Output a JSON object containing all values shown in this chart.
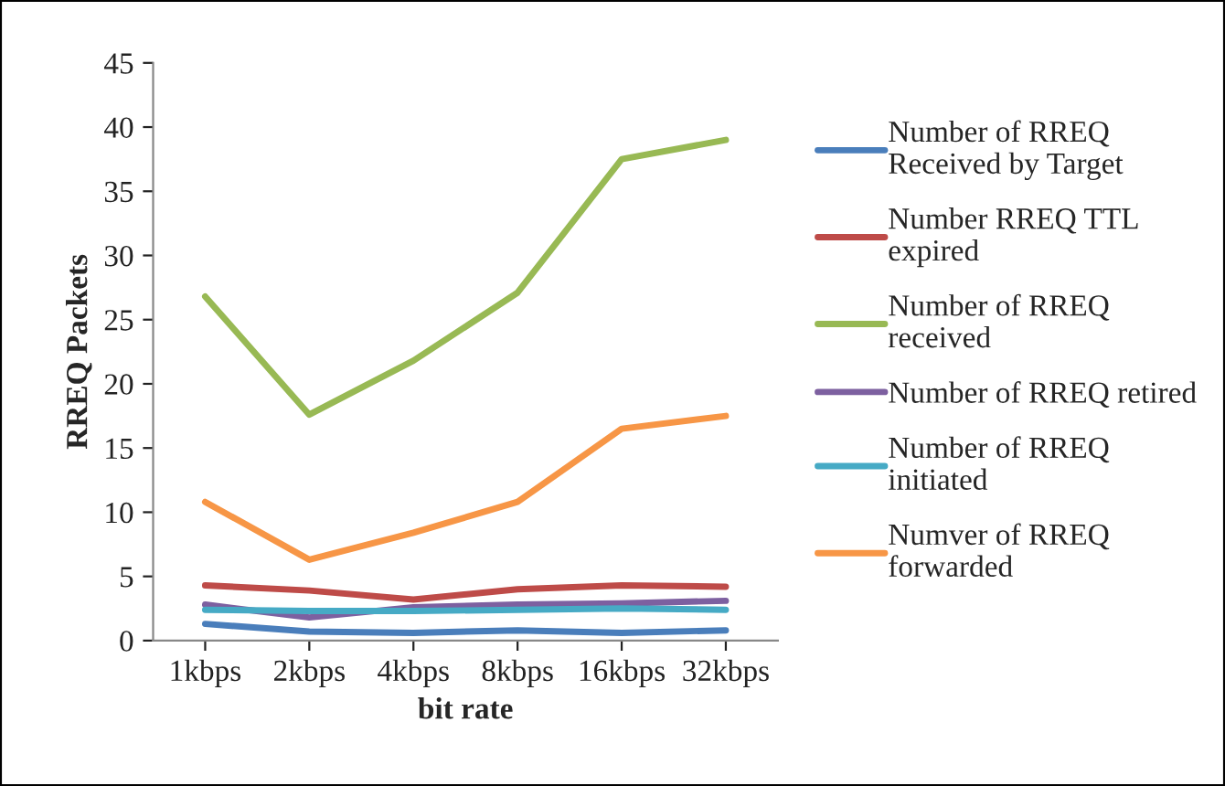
{
  "chart_data": {
    "type": "line",
    "xlabel": "bit rate",
    "ylabel": "RREQ Packets",
    "categories": [
      "1kbps",
      "2kbps",
      "4kbps",
      "8kbps",
      "16kbps",
      "32kbps"
    ],
    "series": [
      {
        "name": "Number of RREQ\nReceived by Target",
        "color": "#4a7ebb",
        "values": [
          1.3,
          0.7,
          0.6,
          0.8,
          0.6,
          0.8
        ]
      },
      {
        "name": "Number RREQ TTL\nexpired",
        "color": "#be4b48",
        "values": [
          4.3,
          3.9,
          3.2,
          4.0,
          4.3,
          4.2
        ]
      },
      {
        "name": "Number of RREQ\nreceived",
        "color": "#98b954",
        "values": [
          26.8,
          17.6,
          21.8,
          27.1,
          37.5,
          39.0
        ]
      },
      {
        "name": "Number of RREQ retired",
        "color": "#7d60a0",
        "values": [
          2.8,
          1.8,
          2.6,
          2.8,
          2.9,
          3.1
        ]
      },
      {
        "name": "Number of RREQ\ninitiated",
        "color": "#46aac5",
        "values": [
          2.4,
          2.3,
          2.3,
          2.4,
          2.5,
          2.4
        ]
      },
      {
        "name": "Numver of RREQ\nforwarded",
        "color": "#f79646",
        "values": [
          10.8,
          6.3,
          8.4,
          10.8,
          16.5,
          17.5
        ]
      }
    ],
    "ylim": [
      0,
      45
    ],
    "yticks": [
      0,
      5,
      10,
      15,
      20,
      25,
      30,
      35,
      40,
      45
    ],
    "grid": false,
    "legend": "right",
    "marker": "none",
    "line_style": "solid"
  }
}
